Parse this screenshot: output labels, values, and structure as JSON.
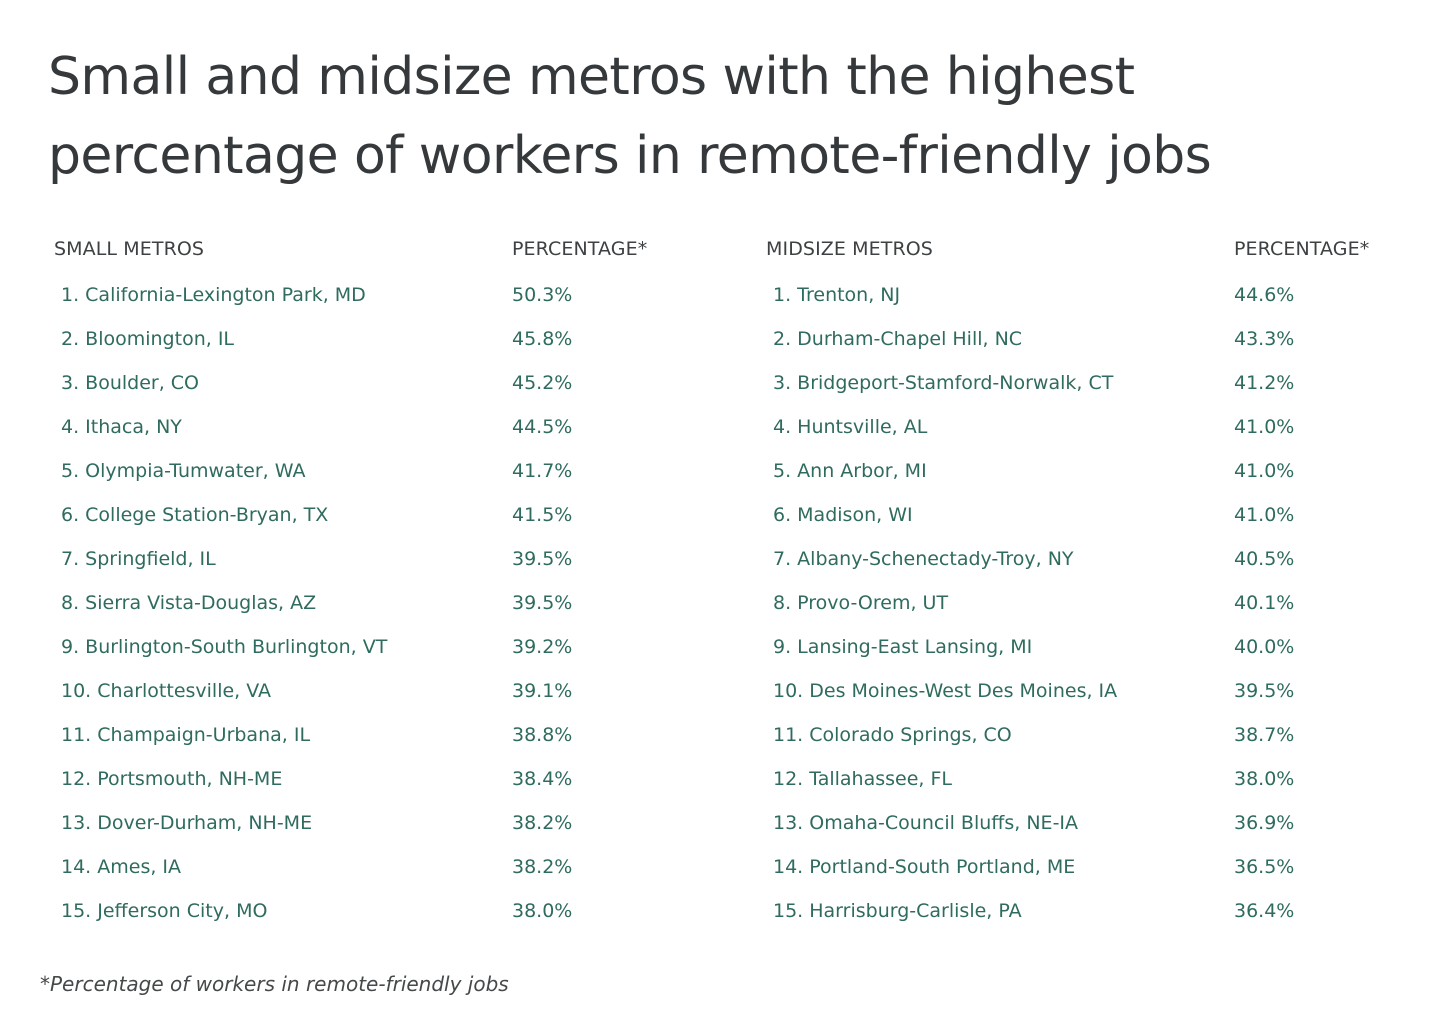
{
  "title": "Small and midsize metros with the highest percentage of workers in remote-friendly jobs",
  "small": {
    "header_name": "SMALL METROS",
    "header_pct": "PERCENTAGE*",
    "rows": [
      {
        "name": "1. California-Lexington Park, MD",
        "pct": "50.3%"
      },
      {
        "name": "2. Bloomington, IL",
        "pct": "45.8%"
      },
      {
        "name": "3. Boulder, CO",
        "pct": "45.2%"
      },
      {
        "name": "4. Ithaca, NY",
        "pct": "44.5%"
      },
      {
        "name": "5. Olympia-Tumwater, WA",
        "pct": "41.7%"
      },
      {
        "name": "6. College Station-Bryan, TX",
        "pct": "41.5%"
      },
      {
        "name": "7. Springfield, IL",
        "pct": "39.5%"
      },
      {
        "name": "8. Sierra Vista-Douglas, AZ",
        "pct": "39.5%"
      },
      {
        "name": "9. Burlington-South Burlington, VT",
        "pct": "39.2%"
      },
      {
        "name": "10. Charlottesville, VA",
        "pct": "39.1%"
      },
      {
        "name": "11. Champaign-Urbana, IL",
        "pct": "38.8%"
      },
      {
        "name": "12. Portsmouth, NH-ME",
        "pct": "38.4%"
      },
      {
        "name": "13. Dover-Durham, NH-ME",
        "pct": "38.2%"
      },
      {
        "name": "14. Ames, IA",
        "pct": "38.2%"
      },
      {
        "name": "15. Jefferson City, MO",
        "pct": "38.0%"
      }
    ]
  },
  "midsize": {
    "header_name": "MIDSIZE METROS",
    "header_pct": "PERCENTAGE*",
    "rows": [
      {
        "name": "1. Trenton, NJ",
        "pct": "44.6%"
      },
      {
        "name": "2. Durham-Chapel Hill, NC",
        "pct": "43.3%"
      },
      {
        "name": "3. Bridgeport-Stamford-Norwalk, CT",
        "pct": "41.2%"
      },
      {
        "name": "4. Huntsville, AL",
        "pct": "41.0%"
      },
      {
        "name": "5. Ann Arbor, MI",
        "pct": "41.0%"
      },
      {
        "name": "6. Madison, WI",
        "pct": "41.0%"
      },
      {
        "name": "7. Albany-Schenectady-Troy, NY",
        "pct": "40.5%"
      },
      {
        "name": "8. Provo-Orem, UT",
        "pct": "40.1%"
      },
      {
        "name": "9. Lansing-East Lansing, MI",
        "pct": "40.0%"
      },
      {
        "name": "10. Des Moines-West Des Moines, IA",
        "pct": "39.5%"
      },
      {
        "name": "11. Colorado Springs, CO",
        "pct": "38.7%"
      },
      {
        "name": "12. Tallahassee, FL",
        "pct": "38.0%"
      },
      {
        "name": "13. Omaha-Council Bluffs, NE-IA",
        "pct": "36.9%"
      },
      {
        "name": "14. Portland-South Portland, ME",
        "pct": "36.5%"
      },
      {
        "name": "15. Harrisburg-Carlisle, PA",
        "pct": "36.4%"
      }
    ]
  },
  "footnote": "*Percentage of workers in remote-friendly jobs"
}
